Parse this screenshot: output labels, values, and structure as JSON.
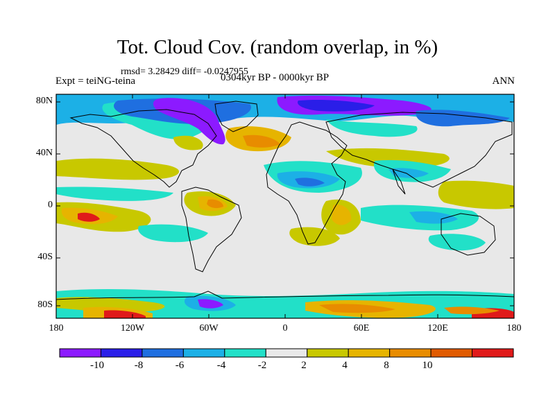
{
  "title": "Tot. Cloud Cov. (random overlap, in %)",
  "stats": "rmsd= 3.28429  diff= -0.0247955",
  "experiment": "Expt = teiNG-teina",
  "period": "0304kyr BP - 0000kyr BP",
  "season": "ANN",
  "map": {
    "projection": "cylindrical equidistant",
    "lat_ticks": [
      "80N",
      "40N",
      "0",
      "40S",
      "80S"
    ],
    "lon_ticks": [
      "180",
      "120W",
      "60W",
      "0",
      "60E",
      "120E",
      "180"
    ]
  },
  "colorbar": {
    "labels": [
      "-10",
      "-8",
      "-6",
      "-4",
      "-2",
      "2",
      "4",
      "8",
      "10"
    ],
    "colors": [
      "#8c1aff",
      "#2a1ee8",
      "#1f6fe0",
      "#1cb0e6",
      "#22e0c8",
      "#e8e8e8",
      "#c8c800",
      "#e6b400",
      "#e88c00",
      "#e05a00",
      "#e01a1a"
    ]
  },
  "colors": {
    "background_field": "#e8e8e8",
    "coastline": "#000000"
  }
}
